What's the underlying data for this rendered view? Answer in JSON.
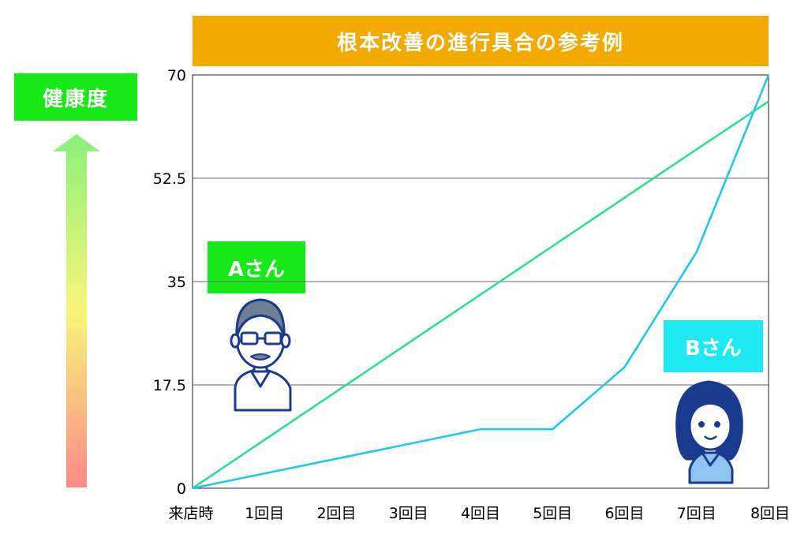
{
  "title": "根本改善の進行具合の参考例",
  "health_label": "健康度",
  "person_a_label": "Aさん",
  "person_b_label": "Bさん",
  "colors": {
    "title_bg": "#f2a900",
    "label_green": "#17e817",
    "label_cyan": "#1ee8f2",
    "series_a": "#2ee08a",
    "series_b": "#1ec8ee"
  },
  "icons": [
    "health-gradient-arrow-icon",
    "person-a-glasses-man-icon",
    "person-b-woman-icon"
  ],
  "chart_data": {
    "type": "line",
    "title": "根本改善の進行具合の参考例",
    "xlabel": "",
    "ylabel": "健康度",
    "categories": [
      "来店時",
      "1回目",
      "2回目",
      "3回目",
      "4回目",
      "5回目",
      "6回目",
      "7回目",
      "8回目"
    ],
    "yticks": [
      "0",
      "17.5",
      "35",
      "52.5",
      "70"
    ],
    "ylim": [
      0,
      70
    ],
    "grid": true,
    "series": [
      {
        "name": "Aさん",
        "values": [
          0,
          8.2,
          16.4,
          24.6,
          32.8,
          41,
          49.2,
          57.4,
          65.5
        ]
      },
      {
        "name": "Bさん",
        "values": [
          0,
          2.5,
          5,
          7.5,
          10,
          10,
          20.5,
          40,
          70
        ]
      }
    ]
  }
}
